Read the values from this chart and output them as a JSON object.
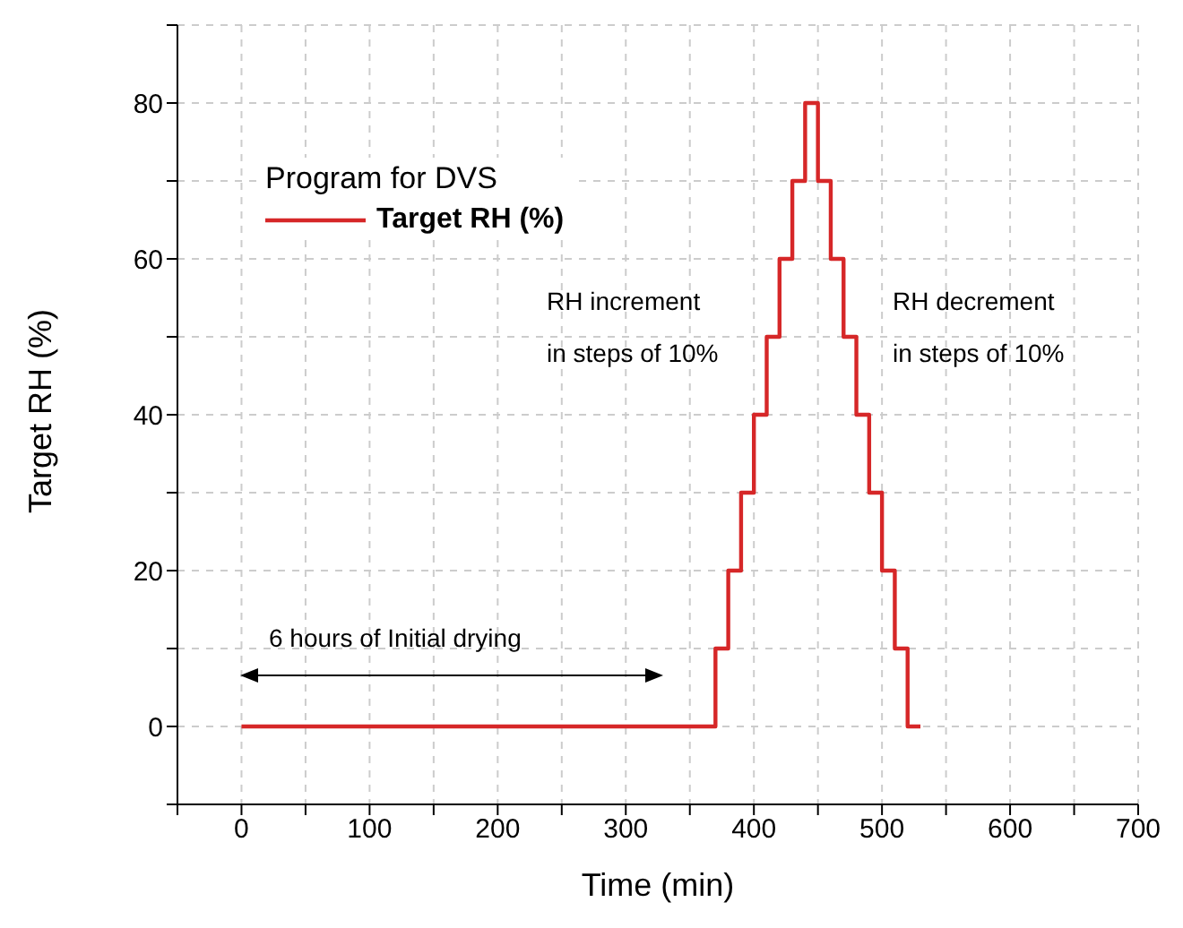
{
  "chart_data": {
    "type": "step",
    "xlabel": "Time (min)",
    "ylabel": "Target RH (%)",
    "legend_title": "Program for DVS",
    "legend": "top left",
    "grid": true,
    "marker": "none",
    "line_style": "solid",
    "x": [
      0,
      370,
      380,
      390,
      400,
      410,
      420,
      430,
      440,
      450,
      460,
      470,
      480,
      490,
      500,
      510,
      520,
      530
    ],
    "series": [
      {
        "name": "Target RH (%)",
        "color": "#d62728",
        "values": [
          0,
          10,
          20,
          30,
          40,
          50,
          60,
          70,
          80,
          70,
          60,
          50,
          40,
          30,
          20,
          10,
          0,
          0
        ]
      }
    ],
    "xlim": [
      -50,
      700
    ],
    "xticks": [
      {
        "value": -50,
        "label": null
      },
      0,
      {
        "value": 50,
        "label": null
      },
      100,
      {
        "value": 150,
        "label": null
      },
      200,
      {
        "value": 250,
        "label": null
      },
      300,
      {
        "value": 350,
        "label": null
      },
      400,
      {
        "value": 450,
        "label": null
      },
      500,
      {
        "value": 550,
        "label": null
      },
      600,
      {
        "value": 650,
        "label": null
      },
      700
    ],
    "ylim": [
      -10,
      90
    ],
    "yticks": [
      {
        "value": -10,
        "label": null
      },
      0,
      {
        "value": 10,
        "label": null
      },
      20,
      {
        "value": 30,
        "label": null
      },
      40,
      {
        "value": 50,
        "label": null
      },
      60,
      {
        "value": 70,
        "label": null
      },
      80,
      {
        "value": 90,
        "label": null
      }
    ],
    "annotations": [
      "RH increment\nin steps of 10%",
      "RH decrement\nin steps of 10%",
      "6 hours of Initial drying"
    ]
  }
}
